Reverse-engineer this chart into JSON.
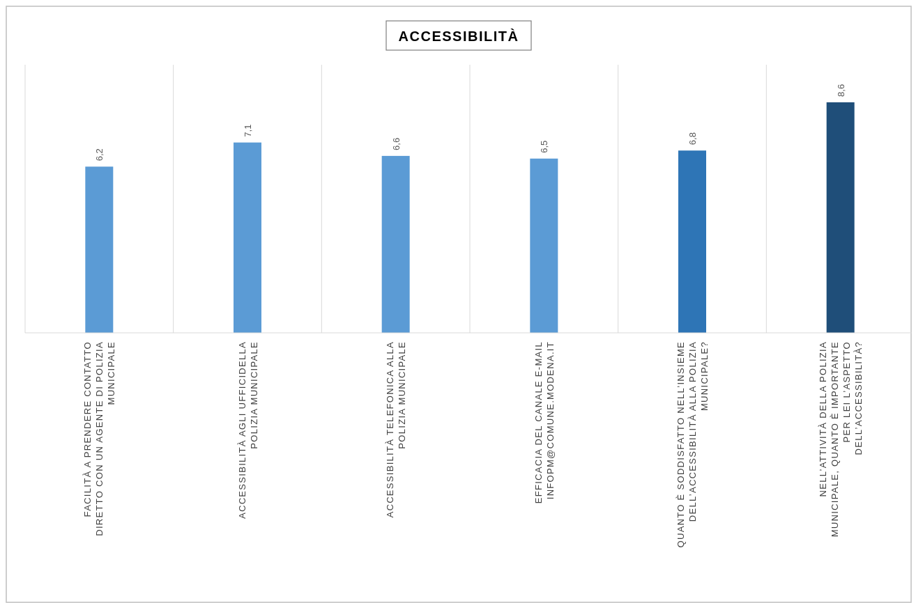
{
  "chart_data": {
    "type": "bar",
    "title": "ACCESSIBILITÀ",
    "categories": [
      "FACILITÀ A PRENDERE CONTATTO DIRETTO CON UN AGENTE DI POLIZIA MUNICIPALE",
      "ACCESSIBILITÀ AGLI UFFICIDELLA POLIZIA MUNICIPALE",
      "ACCESSIBILITÀ TELEFONICA ALLA POLIZIA MUNICIPALE",
      "EFFICACIA DEL CANALE E-MAIL INFOPM@COMUNE.MODENA.IT",
      "QUANTO È SODDISFATTO NELL’INSIEME DELL’ACCESSIBILITÀ ALLA POLIZIA MUNICIPALE?",
      "NELL’ATTIVITÀ DELLA POLIZIA MUNICIPALE, QUANTO È IMPORTANTE PER LEI L’ASPETTO DELL’ACCESSIBILITÀ?"
    ],
    "values": [
      6.2,
      7.1,
      6.6,
      6.5,
      6.8,
      8.6
    ],
    "colors": [
      "#5b9bd5",
      "#5b9bd5",
      "#5b9bd5",
      "#5b9bd5",
      "#2e75b6",
      "#1f4e79"
    ],
    "value_labels": [
      "6,2",
      "7,1",
      "6,6",
      "6,5",
      "6,8",
      "8,6"
    ],
    "ylim": [
      0,
      10
    ],
    "grid": "x",
    "tick_labels": "x"
  }
}
